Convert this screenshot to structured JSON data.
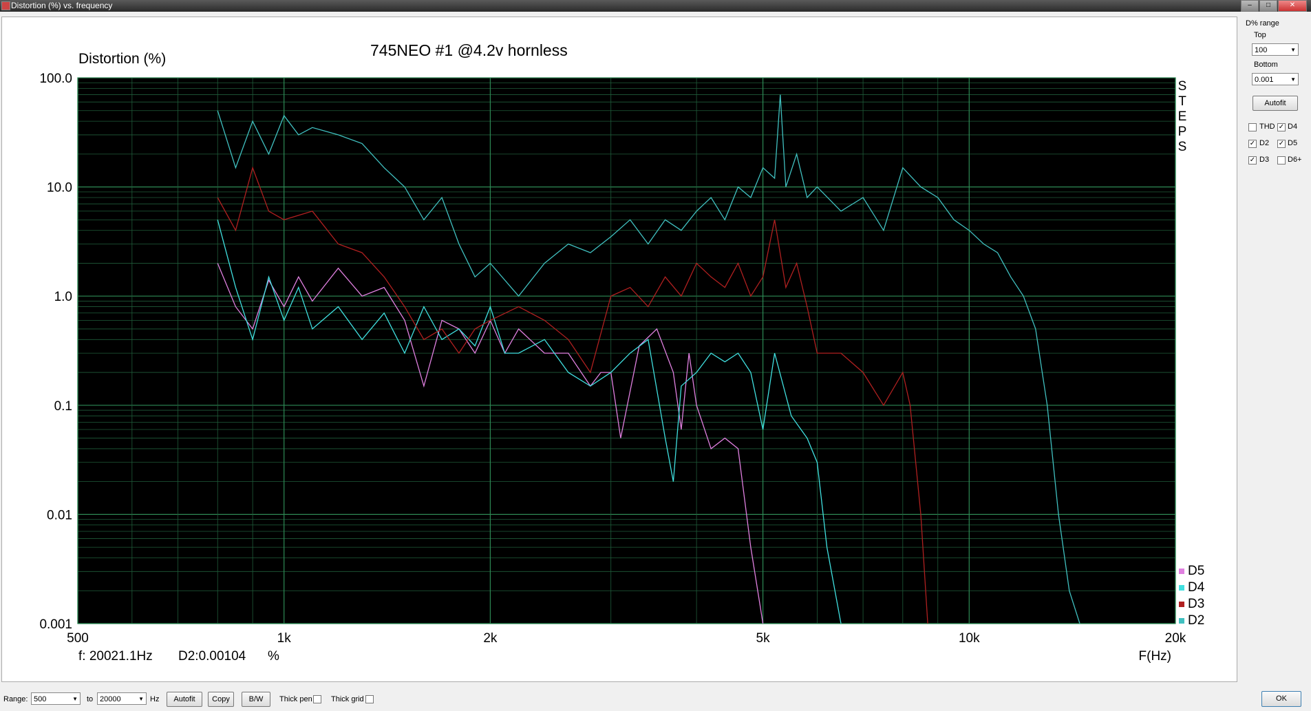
{
  "window": {
    "title": "Distortion (%) vs. frequency"
  },
  "chart_data": {
    "type": "line",
    "title": "745NEO #1 @4.2v hornless",
    "ylabel": "Distortion (%)",
    "xlabel": "F(Hz)",
    "xscale": "log",
    "yscale": "log",
    "xlim": [
      500,
      20000
    ],
    "ylim": [
      0.001,
      100
    ],
    "x_ticks": [
      {
        "v": 500,
        "l": "500"
      },
      {
        "v": 1000,
        "l": "1k"
      },
      {
        "v": 2000,
        "l": "2k"
      },
      {
        "v": 5000,
        "l": "5k"
      },
      {
        "v": 10000,
        "l": "10k"
      },
      {
        "v": 20000,
        "l": "20k"
      }
    ],
    "y_ticks": [
      {
        "v": 100,
        "l": "100.0"
      },
      {
        "v": 10,
        "l": "10.0"
      },
      {
        "v": 1,
        "l": "1.0"
      },
      {
        "v": 0.1,
        "l": "0.1"
      },
      {
        "v": 0.01,
        "l": "0.01"
      },
      {
        "v": 0.001,
        "l": "0.001"
      }
    ],
    "steps_label": [
      "S",
      "T",
      "E",
      "P",
      "S"
    ],
    "grid": true,
    "legend_position": "bottom-right",
    "readout": {
      "f": "f: 20021.1Hz",
      "d2": "D2:0.00104",
      "unit": "%"
    },
    "series": [
      {
        "name": "D5",
        "color": "#e080e0",
        "x": [
          800,
          850,
          900,
          950,
          1000,
          1050,
          1100,
          1200,
          1300,
          1400,
          1500,
          1600,
          1700,
          1800,
          1900,
          2000,
          2100,
          2200,
          2400,
          2600,
          2800,
          2900,
          3000,
          3100,
          3300,
          3500,
          3700,
          3800,
          3900,
          4000,
          4200,
          4400,
          4600,
          4800,
          4950,
          5000
        ],
        "y": [
          2.0,
          0.8,
          0.5,
          1.4,
          0.8,
          1.5,
          0.9,
          1.8,
          1.0,
          1.2,
          0.6,
          0.15,
          0.6,
          0.5,
          0.3,
          0.6,
          0.3,
          0.5,
          0.3,
          0.3,
          0.15,
          0.2,
          0.2,
          0.05,
          0.35,
          0.5,
          0.2,
          0.06,
          0.3,
          0.1,
          0.04,
          0.05,
          0.04,
          0.005,
          0.0015,
          0.001
        ]
      },
      {
        "name": "D4",
        "color": "#40e0e0",
        "x": [
          800,
          850,
          900,
          950,
          1000,
          1050,
          1100,
          1200,
          1300,
          1400,
          1500,
          1600,
          1700,
          1800,
          1900,
          2000,
          2100,
          2200,
          2400,
          2600,
          2800,
          3000,
          3200,
          3400,
          3600,
          3700,
          3800,
          4000,
          4200,
          4400,
          4600,
          4800,
          5000,
          5200,
          5500,
          5800,
          6000,
          6200,
          6500
        ],
        "y": [
          5.0,
          1.2,
          0.4,
          1.5,
          0.6,
          1.2,
          0.5,
          0.8,
          0.4,
          0.7,
          0.3,
          0.8,
          0.4,
          0.5,
          0.35,
          0.8,
          0.3,
          0.3,
          0.4,
          0.2,
          0.15,
          0.2,
          0.3,
          0.4,
          0.05,
          0.02,
          0.15,
          0.2,
          0.3,
          0.25,
          0.3,
          0.2,
          0.06,
          0.3,
          0.08,
          0.05,
          0.03,
          0.005,
          0.001
        ]
      },
      {
        "name": "D3",
        "color": "#b02020",
        "x": [
          800,
          850,
          900,
          950,
          1000,
          1100,
          1200,
          1300,
          1400,
          1500,
          1600,
          1700,
          1800,
          1900,
          2000,
          2200,
          2400,
          2600,
          2800,
          3000,
          3200,
          3400,
          3600,
          3800,
          4000,
          4200,
          4400,
          4600,
          4800,
          5000,
          5200,
          5400,
          5600,
          5800,
          6000,
          6500,
          7000,
          7500,
          8000,
          8200,
          8500,
          8700
        ],
        "y": [
          8.0,
          4.0,
          15.0,
          6.0,
          5.0,
          6.0,
          3.0,
          2.5,
          1.5,
          0.8,
          0.4,
          0.5,
          0.3,
          0.5,
          0.6,
          0.8,
          0.6,
          0.4,
          0.2,
          1.0,
          1.2,
          0.8,
          1.5,
          1.0,
          2.0,
          1.5,
          1.2,
          2.0,
          1.0,
          1.5,
          5.0,
          1.2,
          2.0,
          0.8,
          0.3,
          0.3,
          0.2,
          0.1,
          0.2,
          0.1,
          0.01,
          0.001
        ]
      },
      {
        "name": "D2",
        "color": "#40c0c0",
        "x": [
          800,
          850,
          900,
          950,
          1000,
          1050,
          1100,
          1200,
          1300,
          1400,
          1500,
          1600,
          1700,
          1800,
          1900,
          2000,
          2200,
          2400,
          2600,
          2800,
          3000,
          3200,
          3400,
          3600,
          3800,
          4000,
          4200,
          4400,
          4600,
          4800,
          5000,
          5200,
          5300,
          5400,
          5600,
          5800,
          6000,
          6500,
          7000,
          7500,
          8000,
          8500,
          9000,
          9500,
          10000,
          10500,
          11000,
          11500,
          12000,
          12500,
          13000,
          13500,
          14000,
          14500
        ],
        "y": [
          50.0,
          15.0,
          40.0,
          20.0,
          45.0,
          30.0,
          35.0,
          30.0,
          25.0,
          15.0,
          10.0,
          5.0,
          8.0,
          3.0,
          1.5,
          2.0,
          1.0,
          2.0,
          3.0,
          2.5,
          3.5,
          5.0,
          3.0,
          5.0,
          4.0,
          6.0,
          8.0,
          5.0,
          10.0,
          8.0,
          15.0,
          12.0,
          70.0,
          10.0,
          20.0,
          8.0,
          10.0,
          6.0,
          8.0,
          4.0,
          15.0,
          10.0,
          8.0,
          5.0,
          4.0,
          3.0,
          2.5,
          1.5,
          1.0,
          0.5,
          0.1,
          0.01,
          0.002,
          0.001
        ]
      }
    ]
  },
  "sidebar": {
    "group_label": "D% range",
    "top_label": "Top",
    "top_value": "100",
    "bottom_label": "Bottom",
    "bottom_value": "0.001",
    "autofit_label": "Autofit",
    "checkboxes": [
      {
        "label": "THD",
        "checked": false
      },
      {
        "label": "D4",
        "checked": true
      },
      {
        "label": "D2",
        "checked": true
      },
      {
        "label": "D5",
        "checked": true
      },
      {
        "label": "D3",
        "checked": true
      },
      {
        "label": "D6+",
        "checked": false
      }
    ]
  },
  "bottombar": {
    "range_label": "Range:",
    "range_from": "500",
    "to_label": "to",
    "range_to": "20000",
    "hz_label": "Hz",
    "autofit_label": "Autofit",
    "copy_label": "Copy",
    "bw_label": "B/W",
    "thick_pen_label": "Thick pen",
    "thick_grid_label": "Thick grid",
    "ok_label": "OK"
  }
}
